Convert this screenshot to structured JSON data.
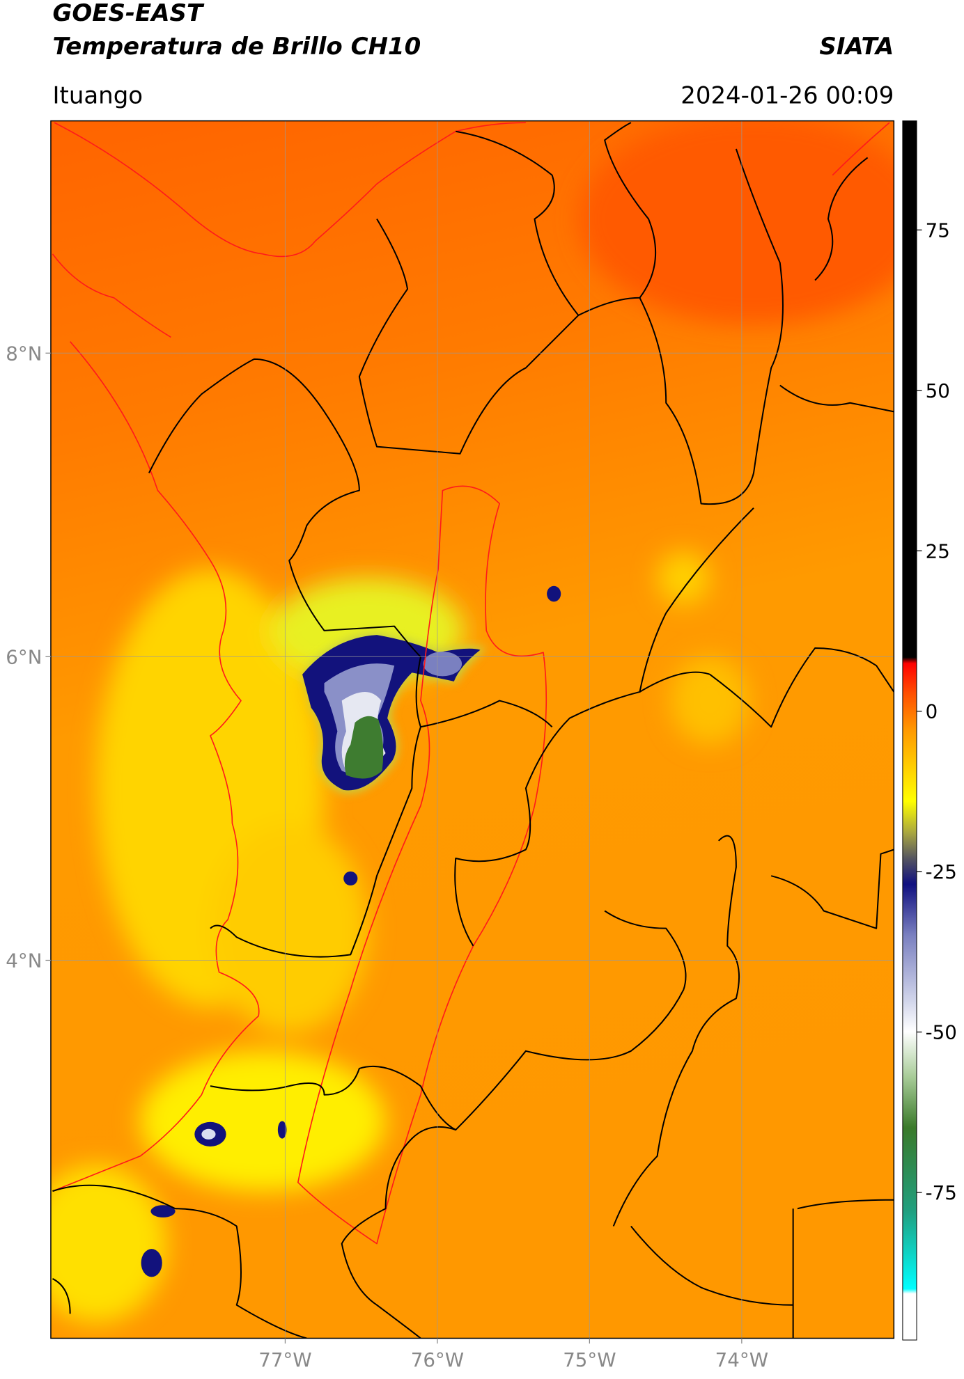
{
  "header": {
    "title": "GOES-EAST",
    "subtitle": "Temperatura de Brillo CH10",
    "brand": "SIATA",
    "location": "Ituango",
    "datetime": "2024-01-26 00:09"
  },
  "map": {
    "lon_lim": [
      -78.54,
      -73.0
    ],
    "lat_lim": [
      1.51,
      9.53
    ],
    "lon_ticks": [
      {
        "value": -77,
        "label": "77°W"
      },
      {
        "value": -76,
        "label": "76°W"
      },
      {
        "value": -75,
        "label": "75°W"
      },
      {
        "value": -74,
        "label": "74°W"
      }
    ],
    "lat_ticks": [
      {
        "value": 8,
        "label": "8°N"
      },
      {
        "value": 6,
        "label": "6°N"
      },
      {
        "value": 4,
        "label": "4°N"
      }
    ]
  },
  "colorbar": {
    "lim": [
      -98,
      92
    ],
    "ticks": [
      75,
      50,
      25,
      0,
      -25,
      -50,
      -75
    ]
  }
}
